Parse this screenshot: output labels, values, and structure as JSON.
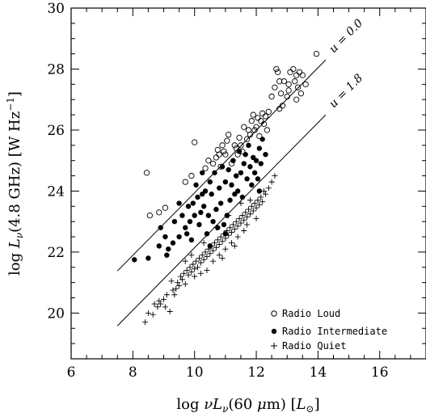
{
  "chart_data": {
    "type": "scatter",
    "xlabel": "log νL_ν(60 μm) [L_⊙]",
    "ylabel": "log L_ν(4.8 GHz) [W Hz^-1]",
    "xlim": [
      6,
      17.5
    ],
    "ylim": [
      18.5,
      30
    ],
    "x_ticks": [
      6,
      8,
      10,
      12,
      14,
      16
    ],
    "y_ticks": [
      20,
      22,
      24,
      26,
      28,
      30
    ],
    "grid": false,
    "legend_position": "bottom-right",
    "lines": [
      {
        "label": "u = 0.0",
        "x": [
          7.5,
          14.25
        ],
        "y": [
          21.38,
          28.3
        ]
      },
      {
        "label": "u = 1.8",
        "x": [
          7.5,
          14.25
        ],
        "y": [
          19.58,
          26.5
        ]
      }
    ],
    "series": [
      {
        "name": "Radio Loud",
        "marker": "open-circle",
        "points": [
          [
            8.45,
            24.6
          ],
          [
            8.55,
            23.2
          ],
          [
            8.85,
            23.3
          ],
          [
            9.05,
            23.45
          ],
          [
            9.7,
            24.3
          ],
          [
            9.9,
            24.5
          ],
          [
            10.0,
            25.6
          ],
          [
            10.35,
            24.75
          ],
          [
            10.45,
            25.0
          ],
          [
            10.6,
            24.9
          ],
          [
            10.7,
            25.1
          ],
          [
            10.75,
            25.35
          ],
          [
            10.8,
            25.2
          ],
          [
            10.85,
            24.8
          ],
          [
            10.9,
            25.5
          ],
          [
            10.95,
            25.3
          ],
          [
            11.0,
            25.2
          ],
          [
            11.05,
            25.65
          ],
          [
            11.1,
            25.85
          ],
          [
            11.2,
            24.9
          ],
          [
            11.3,
            25.5
          ],
          [
            11.35,
            25.4
          ],
          [
            11.4,
            25.2
          ],
          [
            11.45,
            25.75
          ],
          [
            11.5,
            25.5
          ],
          [
            11.55,
            25.3
          ],
          [
            11.6,
            26.1
          ],
          [
            11.7,
            25.7
          ],
          [
            11.75,
            26.0
          ],
          [
            11.8,
            25.85
          ],
          [
            11.85,
            26.3
          ],
          [
            11.9,
            26.5
          ],
          [
            11.95,
            26.0
          ],
          [
            12.0,
            26.1
          ],
          [
            12.05,
            26.4
          ],
          [
            12.1,
            25.8
          ],
          [
            12.15,
            26.3
          ],
          [
            12.2,
            26.55
          ],
          [
            12.25,
            26.2
          ],
          [
            12.3,
            26.45
          ],
          [
            12.35,
            26.0
          ],
          [
            12.4,
            26.6
          ],
          [
            12.5,
            27.1
          ],
          [
            12.6,
            27.4
          ],
          [
            12.65,
            28.0
          ],
          [
            12.7,
            27.9
          ],
          [
            12.75,
            27.6
          ],
          [
            12.8,
            27.2
          ],
          [
            12.85,
            26.8
          ],
          [
            12.9,
            27.6
          ],
          [
            13.0,
            27.1
          ],
          [
            13.05,
            27.5
          ],
          [
            13.1,
            27.9
          ],
          [
            13.2,
            28.0
          ],
          [
            13.25,
            27.6
          ],
          [
            13.3,
            27.8
          ],
          [
            13.35,
            27.4
          ],
          [
            13.4,
            27.9
          ],
          [
            13.45,
            27.2
          ],
          [
            13.5,
            27.8
          ],
          [
            13.6,
            27.5
          ],
          [
            13.3,
            27.0
          ],
          [
            13.05,
            27.3
          ],
          [
            12.75,
            26.7
          ],
          [
            13.95,
            28.5
          ]
        ]
      },
      {
        "name": "Radio Intermediate",
        "marker": "filled-circle",
        "points": [
          [
            8.05,
            21.75
          ],
          [
            8.5,
            21.8
          ],
          [
            8.85,
            22.2
          ],
          [
            8.9,
            22.8
          ],
          [
            9.05,
            22.5
          ],
          [
            9.1,
            21.9
          ],
          [
            9.15,
            22.1
          ],
          [
            9.35,
            23.0
          ],
          [
            9.5,
            22.5
          ],
          [
            9.6,
            23.2
          ],
          [
            9.7,
            22.8
          ],
          [
            9.75,
            22.6
          ],
          [
            9.8,
            23.5
          ],
          [
            9.85,
            23.0
          ],
          [
            9.9,
            22.4
          ],
          [
            9.95,
            23.6
          ],
          [
            10.0,
            23.2
          ],
          [
            10.05,
            24.2
          ],
          [
            10.1,
            23.8
          ],
          [
            10.15,
            22.9
          ],
          [
            10.2,
            23.3
          ],
          [
            10.25,
            24.6
          ],
          [
            10.3,
            23.5
          ],
          [
            10.35,
            24.0
          ],
          [
            10.4,
            22.6
          ],
          [
            10.45,
            23.2
          ],
          [
            10.5,
            24.3
          ],
          [
            10.55,
            23.9
          ],
          [
            10.6,
            23.0
          ],
          [
            10.65,
            24.6
          ],
          [
            10.7,
            23.4
          ],
          [
            10.75,
            22.8
          ],
          [
            10.8,
            24.1
          ],
          [
            10.85,
            23.6
          ],
          [
            10.9,
            24.8
          ],
          [
            10.95,
            22.9
          ],
          [
            11.0,
            24.3
          ],
          [
            11.05,
            23.2
          ],
          [
            11.1,
            24.7
          ],
          [
            11.15,
            23.7
          ],
          [
            11.2,
            24.2
          ],
          [
            11.25,
            25.0
          ],
          [
            11.3,
            23.9
          ],
          [
            11.35,
            24.5
          ],
          [
            11.4,
            24.0
          ],
          [
            11.45,
            25.3
          ],
          [
            11.5,
            24.6
          ],
          [
            11.55,
            23.8
          ],
          [
            11.6,
            24.9
          ],
          [
            11.65,
            25.2
          ],
          [
            11.7,
            24.4
          ],
          [
            11.75,
            25.5
          ],
          [
            11.8,
            24.8
          ],
          [
            11.85,
            24.2
          ],
          [
            11.9,
            25.1
          ],
          [
            11.95,
            24.6
          ],
          [
            12.0,
            25.0
          ],
          [
            12.05,
            24.4
          ],
          [
            12.1,
            25.4
          ],
          [
            12.15,
            24.9
          ],
          [
            12.2,
            25.7
          ],
          [
            12.3,
            25.2
          ],
          [
            12.1,
            24.0
          ],
          [
            11.0,
            22.6
          ],
          [
            10.5,
            22.2
          ],
          [
            9.3,
            22.3
          ],
          [
            9.5,
            23.6
          ],
          [
            10.25,
            23.9
          ]
        ]
      },
      {
        "name": "Radio Quiet",
        "marker": "plus",
        "points": [
          [
            8.4,
            19.7
          ],
          [
            8.5,
            20.0
          ],
          [
            8.65,
            19.95
          ],
          [
            8.8,
            20.2
          ],
          [
            8.85,
            20.4
          ],
          [
            8.9,
            20.3
          ],
          [
            9.0,
            20.45
          ],
          [
            9.05,
            20.2
          ],
          [
            9.1,
            20.6
          ],
          [
            9.2,
            20.05
          ],
          [
            9.3,
            20.75
          ],
          [
            9.4,
            20.8
          ],
          [
            9.45,
            21.0
          ],
          [
            9.5,
            20.9
          ],
          [
            9.55,
            21.2
          ],
          [
            9.6,
            21.1
          ],
          [
            9.65,
            21.3
          ],
          [
            9.7,
            20.95
          ],
          [
            9.75,
            21.4
          ],
          [
            9.8,
            21.25
          ],
          [
            9.85,
            21.5
          ],
          [
            9.9,
            21.35
          ],
          [
            9.95,
            21.6
          ],
          [
            10.0,
            21.45
          ],
          [
            10.05,
            21.7
          ],
          [
            10.1,
            21.5
          ],
          [
            10.15,
            21.8
          ],
          [
            10.2,
            21.65
          ],
          [
            10.25,
            21.9
          ],
          [
            10.3,
            21.75
          ],
          [
            10.35,
            22.0
          ],
          [
            10.4,
            21.85
          ],
          [
            10.45,
            22.1
          ],
          [
            10.5,
            21.95
          ],
          [
            10.55,
            22.2
          ],
          [
            10.6,
            22.05
          ],
          [
            10.65,
            22.3
          ],
          [
            10.7,
            22.15
          ],
          [
            10.75,
            22.4
          ],
          [
            10.8,
            22.25
          ],
          [
            10.85,
            22.5
          ],
          [
            10.9,
            22.35
          ],
          [
            10.95,
            22.6
          ],
          [
            11.0,
            22.45
          ],
          [
            11.05,
            22.7
          ],
          [
            11.1,
            22.55
          ],
          [
            11.15,
            22.8
          ],
          [
            11.2,
            22.65
          ],
          [
            11.25,
            22.9
          ],
          [
            11.3,
            22.75
          ],
          [
            11.35,
            23.0
          ],
          [
            11.4,
            22.85
          ],
          [
            11.45,
            23.1
          ],
          [
            11.5,
            22.95
          ],
          [
            11.55,
            23.2
          ],
          [
            11.6,
            23.05
          ],
          [
            11.65,
            23.3
          ],
          [
            11.7,
            23.15
          ],
          [
            11.75,
            23.4
          ],
          [
            11.8,
            23.25
          ],
          [
            11.85,
            23.5
          ],
          [
            11.9,
            23.35
          ],
          [
            11.95,
            23.6
          ],
          [
            12.0,
            23.45
          ],
          [
            12.05,
            23.7
          ],
          [
            12.1,
            23.55
          ],
          [
            12.15,
            23.8
          ],
          [
            12.2,
            23.65
          ],
          [
            12.3,
            23.9
          ],
          [
            12.4,
            24.1
          ],
          [
            12.5,
            24.3
          ],
          [
            12.6,
            24.5
          ],
          [
            10.0,
            21.2
          ],
          [
            10.2,
            21.3
          ],
          [
            10.4,
            21.4
          ],
          [
            10.6,
            21.7
          ],
          [
            10.8,
            21.9
          ],
          [
            11.0,
            22.1
          ],
          [
            11.2,
            22.3
          ],
          [
            11.4,
            22.5
          ],
          [
            11.6,
            22.7
          ],
          [
            10.3,
            22.3
          ],
          [
            10.7,
            22.8
          ],
          [
            11.1,
            23.2
          ],
          [
            11.5,
            23.6
          ],
          [
            9.7,
            21.7
          ],
          [
            9.9,
            21.9
          ],
          [
            11.3,
            22.2
          ],
          [
            11.7,
            22.9
          ],
          [
            12.0,
            23.1
          ],
          [
            9.35,
            20.6
          ],
          [
            10.9,
            21.8
          ],
          [
            11.8,
            23.7
          ],
          [
            12.25,
            24.0
          ],
          [
            8.7,
            20.3
          ],
          [
            9.25,
            21.05
          ]
        ]
      }
    ]
  },
  "legend": {
    "items": [
      {
        "marker": "open-circle",
        "label": "Radio Loud"
      },
      {
        "marker": "filled-circle",
        "label": "Radio Intermediate"
      },
      {
        "marker": "plus",
        "label": "Radio Quiet"
      }
    ]
  }
}
